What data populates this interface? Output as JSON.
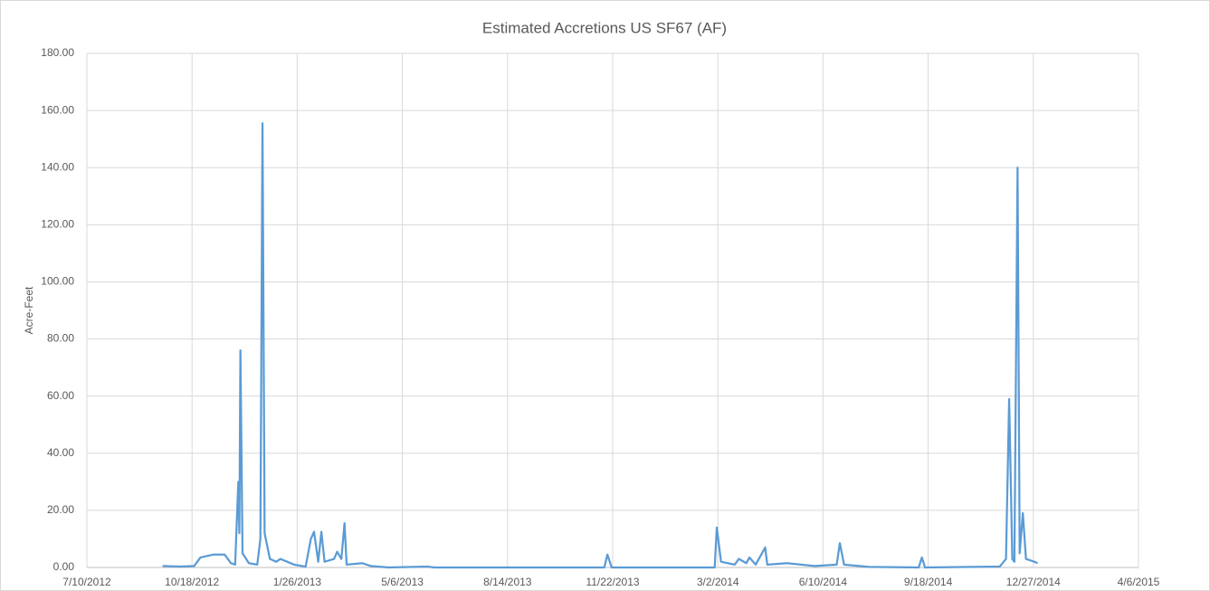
{
  "chart_data": {
    "type": "line",
    "title": "Estimated Accretions US SF67 (AF)",
    "y_label": "Acre-Feet",
    "grid": true,
    "xlim": [
      "2012-07-10",
      "2015-04-06"
    ],
    "xticks": [
      {
        "value": "2012-07-10",
        "label": "7/10/2012"
      },
      {
        "value": "2012-10-18",
        "label": "10/18/2012"
      },
      {
        "value": "2013-01-26",
        "label": "1/26/2013"
      },
      {
        "value": "2013-05-06",
        "label": "5/6/2013"
      },
      {
        "value": "2013-08-14",
        "label": "8/14/2013"
      },
      {
        "value": "2013-11-22",
        "label": "11/22/2013"
      },
      {
        "value": "2014-03-02",
        "label": "3/2/2014"
      },
      {
        "value": "2014-06-10",
        "label": "6/10/2014"
      },
      {
        "value": "2014-09-18",
        "label": "9/18/2014"
      },
      {
        "value": "2014-12-27",
        "label": "12/27/2014"
      },
      {
        "value": "2015-04-06",
        "label": "4/6/2015"
      }
    ],
    "ylim": [
      0,
      180
    ],
    "yticks": [
      {
        "value": 0,
        "label": "0.00"
      },
      {
        "value": 20,
        "label": "20.00"
      },
      {
        "value": 40,
        "label": "40.00"
      },
      {
        "value": 60,
        "label": "60.00"
      },
      {
        "value": 80,
        "label": "80.00"
      },
      {
        "value": 100,
        "label": "100.00"
      },
      {
        "value": 120,
        "label": "120.00"
      },
      {
        "value": 140,
        "label": "140.00"
      },
      {
        "value": 160,
        "label": "160.00"
      },
      {
        "value": 180,
        "label": "180.00"
      }
    ],
    "series": [
      {
        "color": "#5b9bd5",
        "x": [
          "2012-09-20",
          "2012-10-07",
          "2012-10-20",
          "2012-10-26",
          "2012-11-07",
          "2012-11-18",
          "2012-11-24",
          "2012-11-28",
          "2012-12-01",
          "2012-12-02",
          "2012-12-03",
          "2012-12-05",
          "2012-12-11",
          "2012-12-19",
          "2012-12-22",
          "2012-12-24",
          "2012-12-26",
          "2012-12-31",
          "2013-01-06",
          "2013-01-10",
          "2013-01-23",
          "2013-02-03",
          "2013-02-08",
          "2013-02-11",
          "2013-02-15",
          "2013-02-18",
          "2013-02-21",
          "2013-03-02",
          "2013-03-05",
          "2013-03-09",
          "2013-03-12",
          "2013-03-14",
          "2013-03-29",
          "2013-04-06",
          "2013-04-23",
          "2013-05-30",
          "2013-06-05",
          "2013-11-14",
          "2013-11-17",
          "2013-11-21",
          "2014-02-27",
          "2014-03-01",
          "2014-03-05",
          "2014-03-18",
          "2014-03-22",
          "2014-03-29",
          "2014-04-01",
          "2014-04-07",
          "2014-04-16",
          "2014-04-18",
          "2014-05-07",
          "2014-06-02",
          "2014-06-23",
          "2014-06-26",
          "2014-06-30",
          "2014-07-24",
          "2014-09-09",
          "2014-09-12",
          "2014-09-15",
          "2014-11-25",
          "2014-12-01",
          "2014-12-04",
          "2014-12-07",
          "2014-12-09",
          "2014-12-12",
          "2014-12-14",
          "2014-12-17",
          "2014-12-20",
          "2014-12-28",
          "2014-12-31"
        ],
        "values": [
          0.5,
          0.3,
          0.5,
          3.5,
          4.5,
          4.5,
          1.5,
          1,
          30,
          12,
          76,
          5,
          1.5,
          1,
          10,
          155.5,
          12,
          3,
          2,
          3,
          1,
          0.3,
          10,
          12.5,
          2,
          12.5,
          2,
          3,
          5.5,
          3,
          15.5,
          1,
          1.5,
          0.5,
          0,
          0.3,
          0,
          0,
          4.5,
          0,
          0,
          14,
          2,
          1,
          3,
          1.5,
          3.5,
          1,
          7,
          1,
          1.5,
          0.5,
          1,
          8.5,
          1,
          0.2,
          0,
          3.5,
          0,
          0.3,
          3,
          59,
          3,
          2,
          140,
          5,
          19,
          3,
          2,
          1.5
        ]
      }
    ]
  }
}
